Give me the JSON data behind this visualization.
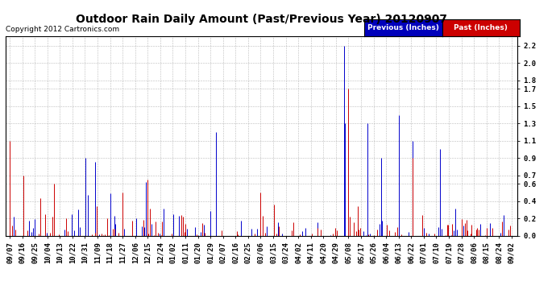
{
  "title": "Outdoor Rain Daily Amount (Past/Previous Year) 20120907",
  "copyright": "Copyright 2012 Cartronics.com",
  "legend_previous": "Previous (Inches)",
  "legend_past": "Past (Inches)",
  "legend_previous_bg": "#0000bb",
  "legend_past_bg": "#cc0000",
  "legend_previous_fg": "#ffffff",
  "legend_past_fg": "#ffffff",
  "color_previous": "#0000cc",
  "color_past": "#cc0000",
  "ylim": [
    0.0,
    2.31
  ],
  "yticks": [
    0.0,
    0.2,
    0.4,
    0.6,
    0.7,
    0.9,
    1.1,
    1.3,
    1.5,
    1.7,
    1.8,
    2.0,
    2.2
  ],
  "background_color": "#ffffff",
  "grid_color": "#aaaaaa",
  "title_fontsize": 10,
  "copyright_fontsize": 6.5,
  "tick_fontsize": 6.5,
  "x_labels": [
    "09/07",
    "09/16",
    "09/25",
    "10/04",
    "10/13",
    "10/22",
    "10/31",
    "11/09",
    "11/18",
    "11/27",
    "12/06",
    "12/15",
    "12/24",
    "01/02",
    "01/11",
    "01/20",
    "01/29",
    "02/07",
    "02/16",
    "02/25",
    "03/06",
    "03/15",
    "03/24",
    "04/02",
    "04/11",
    "04/20",
    "04/29",
    "05/08",
    "05/17",
    "05/26",
    "06/04",
    "06/13",
    "06/22",
    "07/01",
    "07/10",
    "07/19",
    "07/28",
    "08/06",
    "08/15",
    "08/24",
    "09/02"
  ],
  "num_days": 366
}
